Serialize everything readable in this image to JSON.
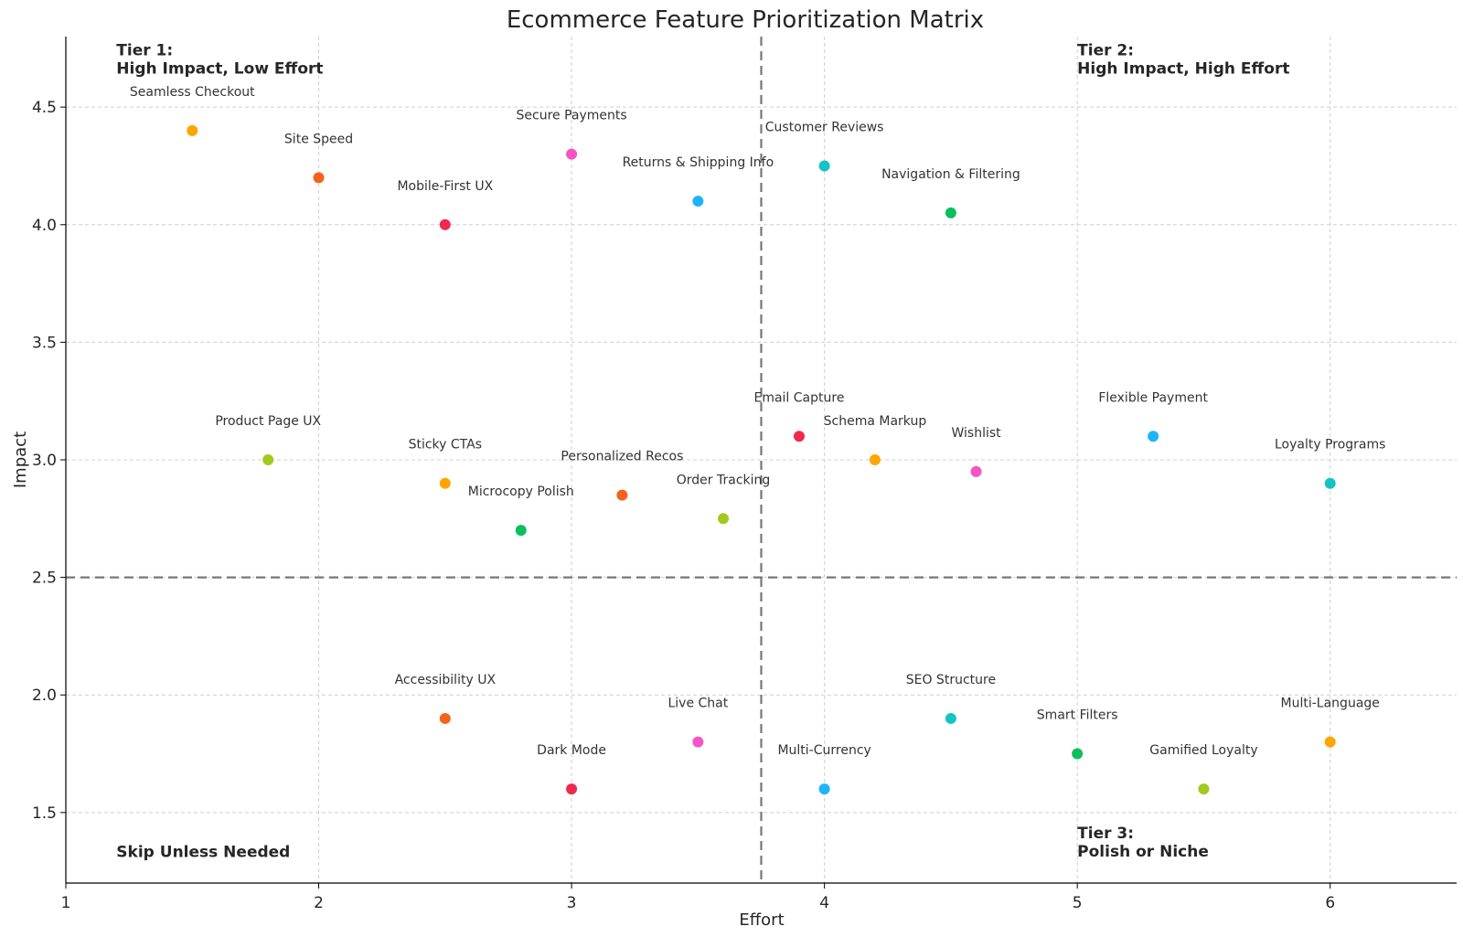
{
  "chart_data": {
    "type": "scatter",
    "title": "Ecommerce Feature Prioritization Matrix",
    "xlabel": "Effort",
    "ylabel": "Impact",
    "xlim": [
      1,
      6.5
    ],
    "ylim": [
      1.2,
      4.8
    ],
    "xticks": [
      1,
      2,
      3,
      4,
      5,
      6
    ],
    "yticks": [
      1.5,
      2.0,
      2.5,
      3.0,
      3.5,
      4.0,
      4.5
    ],
    "ytick_labels": [
      "1.5",
      "2.0",
      "2.5",
      "3.0",
      "3.5",
      "4.0",
      "4.5"
    ],
    "grid": true,
    "dividers": {
      "x": 3.75,
      "y": 2.5
    },
    "quadrant_labels": [
      {
        "lines": [
          "Tier 1:",
          "High Impact, Low Effort"
        ],
        "position": "top-left"
      },
      {
        "lines": [
          "Tier 2:",
          "High Impact, High Effort"
        ],
        "position": "top-right"
      },
      {
        "lines": [
          "Skip Unless Needed"
        ],
        "position": "bottom-left"
      },
      {
        "lines": [
          "Tier 3:",
          "Polish or Niche"
        ],
        "position": "bottom-right"
      }
    ],
    "points": [
      {
        "label": "Seamless Checkout",
        "x": 1.5,
        "y": 4.4,
        "color": "#FFA500"
      },
      {
        "label": "Site Speed",
        "x": 2.0,
        "y": 4.2,
        "color": "#F26419"
      },
      {
        "label": "Mobile-First UX",
        "x": 2.5,
        "y": 4.0,
        "color": "#F0294F"
      },
      {
        "label": "Secure Payments",
        "x": 3.0,
        "y": 4.3,
        "color": "#F553C7"
      },
      {
        "label": "Returns & Shipping Info",
        "x": 3.5,
        "y": 4.1,
        "color": "#1EB4F8"
      },
      {
        "label": "Customer Reviews",
        "x": 4.0,
        "y": 4.25,
        "color": "#14C4C4"
      },
      {
        "label": "Navigation & Filtering",
        "x": 4.5,
        "y": 4.05,
        "color": "#0DBF5C"
      },
      {
        "label": "Product Page UX",
        "x": 1.8,
        "y": 3.0,
        "color": "#A3C81E"
      },
      {
        "label": "Sticky CTAs",
        "x": 2.5,
        "y": 2.9,
        "color": "#FFA500"
      },
      {
        "label": "Microcopy Polish",
        "x": 2.8,
        "y": 2.7,
        "color": "#0DBF5C"
      },
      {
        "label": "Personalized Recos",
        "x": 3.2,
        "y": 2.85,
        "color": "#F26419"
      },
      {
        "label": "Order Tracking",
        "x": 3.6,
        "y": 2.75,
        "color": "#A3C81E"
      },
      {
        "label": "Email Capture",
        "x": 3.9,
        "y": 3.1,
        "color": "#F0294F"
      },
      {
        "label": "Schema Markup",
        "x": 4.2,
        "y": 3.0,
        "color": "#FFA500"
      },
      {
        "label": "Wishlist",
        "x": 4.6,
        "y": 2.95,
        "color": "#F553C7"
      },
      {
        "label": "Flexible Payment",
        "x": 5.3,
        "y": 3.1,
        "color": "#1EB4F8"
      },
      {
        "label": "Loyalty Programs",
        "x": 6.0,
        "y": 2.9,
        "color": "#14C4C4"
      },
      {
        "label": "Accessibility UX",
        "x": 2.5,
        "y": 1.9,
        "color": "#F26419"
      },
      {
        "label": "Dark Mode",
        "x": 3.0,
        "y": 1.6,
        "color": "#F0294F"
      },
      {
        "label": "Live Chat",
        "x": 3.5,
        "y": 1.8,
        "color": "#F553C7"
      },
      {
        "label": "Multi-Currency",
        "x": 4.0,
        "y": 1.6,
        "color": "#1EB4F8"
      },
      {
        "label": "SEO Structure",
        "x": 4.5,
        "y": 1.9,
        "color": "#14C4C4"
      },
      {
        "label": "Smart Filters",
        "x": 5.0,
        "y": 1.75,
        "color": "#0DBF5C"
      },
      {
        "label": "Gamified Loyalty",
        "x": 5.5,
        "y": 1.6,
        "color": "#A3C81E"
      },
      {
        "label": "Multi-Language",
        "x": 6.0,
        "y": 1.8,
        "color": "#FFA500"
      }
    ]
  }
}
